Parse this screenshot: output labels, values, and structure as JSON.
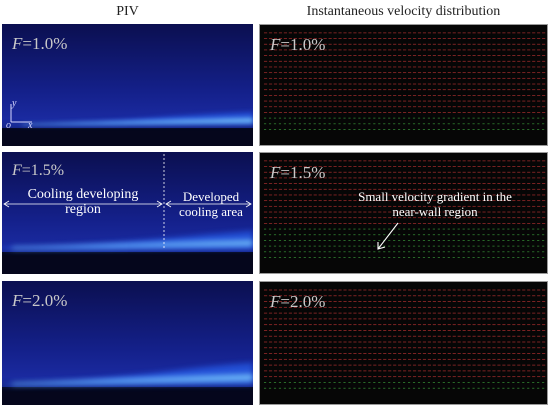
{
  "columns": {
    "left_title": "PIV",
    "right_title": "Instantaneous velocity distribution"
  },
  "panels": {
    "row1": {
      "f_symbol": "F",
      "f_value": "=1.0%"
    },
    "row2": {
      "f_symbol": "F",
      "f_value": "=1.5%"
    },
    "row3": {
      "f_symbol": "F",
      "f_value": "=2.0%"
    }
  },
  "axes": {
    "y_label": "y",
    "origin_label": "o",
    "x_label": "x"
  },
  "annotations": {
    "cooling_developing_line1": "Cooling developing",
    "cooling_developing_line2": "region",
    "developed_line1": "Developed",
    "developed_line2": "cooling area",
    "gradient_line1": "Small velocity gradient in the",
    "gradient_line2": "near-wall region"
  },
  "colors": {
    "piv_background": "#14208a",
    "film_glow": "#3aa0ff",
    "vector_red": "#b03030",
    "vector_green": "#3a9a3a"
  }
}
